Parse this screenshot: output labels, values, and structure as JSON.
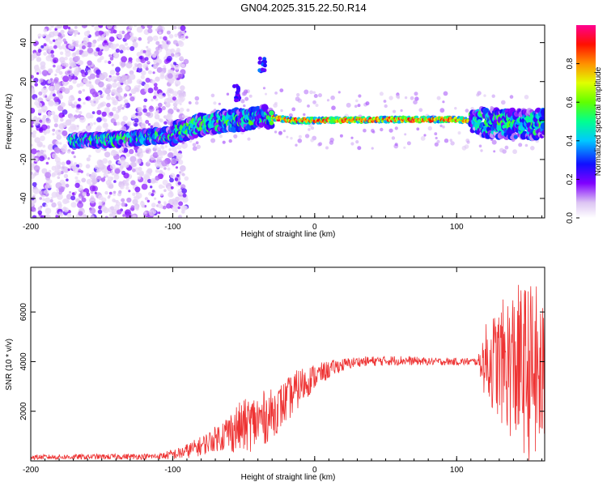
{
  "title": "GN04.2025.315.22.50.R14",
  "colors": {
    "snr_line": "#ee3333",
    "scatter_low": "#d9c2f3",
    "scatter_high": "#7a1fd6"
  },
  "chart_data": [
    {
      "type": "heatmap",
      "title": "GN04.2025.315.22.50.R14",
      "xlabel": "Height of straight line (km)",
      "ylabel": "Frequency (Hz)",
      "xlim": [
        -200,
        162
      ],
      "ylim": [
        -50,
        49
      ],
      "xticks": [
        "-200",
        "-100",
        "0",
        "100"
      ],
      "xtick_values": [
        -200,
        -100,
        0,
        100
      ],
      "yticks": [
        "-40",
        "-20",
        "0",
        "20",
        "40"
      ],
      "ytick_values": [
        -40,
        -20,
        0,
        20,
        40
      ],
      "colorbar": {
        "label": "Normalized spectral amplitude",
        "range": [
          0,
          1
        ],
        "ticks": [
          "0.0",
          "0.2",
          "0.4",
          "0.6",
          "0.8"
        ],
        "tick_values": [
          0.0,
          0.2,
          0.4,
          0.6,
          0.8
        ],
        "colors": [
          "#ffffff",
          "#d8b8f0",
          "#8000ff",
          "#0000ff",
          "#00c8ff",
          "#00ff80",
          "#80ff00",
          "#ffff00",
          "#ff8000",
          "#ff0000",
          "#ff0080"
        ]
      },
      "ridge": [
        {
          "x": -170,
          "y": -10
        },
        {
          "x": -140,
          "y": -10
        },
        {
          "x": -100,
          "y": -7
        },
        {
          "x": -80,
          "y": -2
        },
        {
          "x": -60,
          "y": 0
        },
        {
          "x": -45,
          "y": 1
        },
        {
          "x": -35,
          "y": 2
        },
        {
          "x": -25,
          "y": 1
        },
        {
          "x": -15,
          "y": 0
        },
        {
          "x": 0,
          "y": 0
        },
        {
          "x": 50,
          "y": 0.5
        },
        {
          "x": 100,
          "y": 0.5
        },
        {
          "x": 120,
          "y": -1
        },
        {
          "x": 140,
          "y": -2
        },
        {
          "x": 162,
          "y": -2
        }
      ],
      "features": [
        {
          "x": -37,
          "y": 28,
          "amp": 0.3
        },
        {
          "x": -55,
          "y": 14,
          "amp": 0.25
        }
      ]
    },
    {
      "type": "line",
      "title": "",
      "xlabel": "Height of straight line (km)",
      "ylabel": "SNR (10 * v/v)",
      "xlim": [
        -200,
        162
      ],
      "ylim": [
        0,
        7800
      ],
      "xticks": [
        "-200",
        "-100",
        "0",
        "100"
      ],
      "xtick_values": [
        -200,
        -100,
        0,
        100
      ],
      "yticks": [
        "2000",
        "4000",
        "6000"
      ],
      "ytick_values": [
        2000,
        4000,
        6000
      ],
      "envelope": [
        {
          "x": -200,
          "mean": 150,
          "spread": 100
        },
        {
          "x": -110,
          "mean": 180,
          "spread": 120
        },
        {
          "x": -95,
          "mean": 300,
          "spread": 250
        },
        {
          "x": -80,
          "mean": 600,
          "spread": 400
        },
        {
          "x": -70,
          "mean": 900,
          "spread": 500
        },
        {
          "x": -55,
          "mean": 1300,
          "spread": 1000
        },
        {
          "x": -40,
          "mean": 1600,
          "spread": 1200
        },
        {
          "x": -30,
          "mean": 1900,
          "spread": 1000
        },
        {
          "x": -20,
          "mean": 2400,
          "spread": 900
        },
        {
          "x": -10,
          "mean": 3000,
          "spread": 800
        },
        {
          "x": 0,
          "mean": 3400,
          "spread": 500
        },
        {
          "x": 15,
          "mean": 3800,
          "spread": 300
        },
        {
          "x": 30,
          "mean": 4000,
          "spread": 200
        },
        {
          "x": 60,
          "mean": 4050,
          "spread": 200
        },
        {
          "x": 80,
          "mean": 4000,
          "spread": 150
        },
        {
          "x": 115,
          "mean": 4000,
          "spread": 150
        },
        {
          "x": 120,
          "mean": 4000,
          "spread": 1500
        },
        {
          "x": 140,
          "mean": 3900,
          "spread": 3200
        },
        {
          "x": 155,
          "mean": 3500,
          "spread": 3800
        },
        {
          "x": 162,
          "mean": 3200,
          "spread": 3000
        }
      ]
    }
  ]
}
